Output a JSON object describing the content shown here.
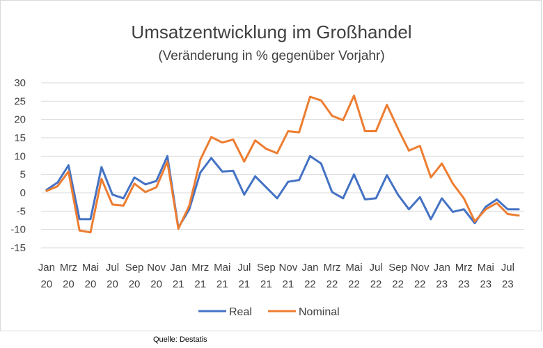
{
  "chart_data": {
    "type": "line",
    "title": "Umsatzentwicklung im Großhandel",
    "subtitle": "(Veränderung in % gegenüber Vorjahr)",
    "xlabel": "",
    "ylabel": "",
    "ylim": [
      -15,
      30
    ],
    "yticks": [
      30,
      25,
      20,
      15,
      10,
      5,
      0,
      -5,
      -10,
      -15
    ],
    "grid": true,
    "legend_position": "bottom",
    "x": [
      "Jan 20",
      "Feb 20",
      "Mrz 20",
      "Apr 20",
      "Mai 20",
      "Jun 20",
      "Jul 20",
      "Aug 20",
      "Sep 20",
      "Okt 20",
      "Nov 20",
      "Dez 20",
      "Jan 21",
      "Feb 21",
      "Mrz 21",
      "Apr 21",
      "Mai 21",
      "Jun 21",
      "Jul 21",
      "Aug 21",
      "Sep 21",
      "Okt 21",
      "Nov 21",
      "Dez 21",
      "Jan 22",
      "Feb 22",
      "Mrz 22",
      "Apr 22",
      "Mai 22",
      "Jun 22",
      "Jul 22",
      "Aug 22",
      "Sep 22",
      "Okt 22",
      "Nov 22",
      "Dez 22",
      "Jan 23",
      "Feb 23",
      "Mrz 23",
      "Apr 23",
      "Mai 23",
      "Jun 23",
      "Jul 23",
      "Aug 23"
    ],
    "tick_labels": [
      {
        "index": 0,
        "month": "Jan",
        "year": "20"
      },
      {
        "index": 2,
        "month": "Mrz",
        "year": "20"
      },
      {
        "index": 4,
        "month": "Mai",
        "year": "20"
      },
      {
        "index": 6,
        "month": "Jul",
        "year": "20"
      },
      {
        "index": 8,
        "month": "Sep",
        "year": "20"
      },
      {
        "index": 10,
        "month": "Nov",
        "year": "20"
      },
      {
        "index": 12,
        "month": "Jan",
        "year": "21"
      },
      {
        "index": 14,
        "month": "Mrz",
        "year": "21"
      },
      {
        "index": 16,
        "month": "Mai",
        "year": "21"
      },
      {
        "index": 18,
        "month": "Jul",
        "year": "21"
      },
      {
        "index": 20,
        "month": "Sep",
        "year": "21"
      },
      {
        "index": 22,
        "month": "Nov",
        "year": "21"
      },
      {
        "index": 24,
        "month": "Jan",
        "year": "22"
      },
      {
        "index": 26,
        "month": "Mrz",
        "year": "22"
      },
      {
        "index": 28,
        "month": "Mai",
        "year": "22"
      },
      {
        "index": 30,
        "month": "Jul",
        "year": "22"
      },
      {
        "index": 32,
        "month": "Sep",
        "year": "22"
      },
      {
        "index": 34,
        "month": "Nov",
        "year": "22"
      },
      {
        "index": 36,
        "month": "Jan",
        "year": "23"
      },
      {
        "index": 38,
        "month": "Mrz",
        "year": "23"
      },
      {
        "index": 40,
        "month": "Mai",
        "year": "23"
      },
      {
        "index": 42,
        "month": "Jul",
        "year": "23"
      }
    ],
    "series": [
      {
        "name": "Real",
        "color": "#4472c4",
        "values": [
          0.8,
          2.8,
          7.5,
          -7.2,
          -7.2,
          7.0,
          -0.5,
          -1.5,
          4.2,
          2.3,
          3.2,
          10.0,
          -9.5,
          -4.5,
          5.5,
          9.5,
          5.8,
          6.0,
          -0.5,
          4.5,
          1.5,
          -1.5,
          3.0,
          3.5,
          10.0,
          8.0,
          0.2,
          -1.5,
          5.0,
          -1.8,
          -1.5,
          4.8,
          -0.5,
          -4.5,
          -1.2,
          -7.2,
          -1.5,
          -5.2,
          -4.5,
          -8.3,
          -3.8,
          -1.8,
          -4.5,
          -4.5
        ]
      },
      {
        "name": "Nominal",
        "color": "#ed7d31",
        "values": [
          0.5,
          1.8,
          5.8,
          -10.3,
          -10.8,
          3.8,
          -3.2,
          -3.5,
          2.5,
          0.2,
          1.5,
          8.5,
          -9.8,
          -3.5,
          9.0,
          15.2,
          13.7,
          14.5,
          8.5,
          14.3,
          12.0,
          10.8,
          16.8,
          16.5,
          26.2,
          25.2,
          21.0,
          19.8,
          26.5,
          16.8,
          16.8,
          24.0,
          17.5,
          11.5,
          12.8,
          4.2,
          8.0,
          2.5,
          -1.5,
          -7.8,
          -4.5,
          -2.8,
          -5.8,
          -6.2
        ]
      }
    ]
  },
  "source_note": "Quelle: Destatis"
}
